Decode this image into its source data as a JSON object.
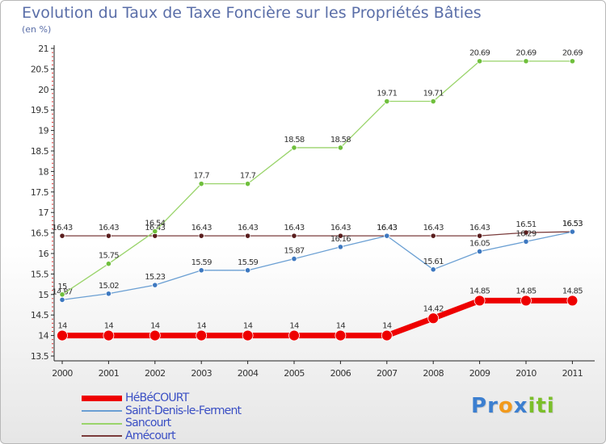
{
  "title": "Evolution du Taux de Taxe Foncière sur les Propriétés Bâties",
  "subtitle": "(en %)",
  "brand": {
    "letters": [
      {
        "ch": "P",
        "color": "#3c7fd0"
      },
      {
        "ch": "r",
        "color": "#3c7fd0"
      },
      {
        "ch": "o",
        "color": "#f29a1c"
      },
      {
        "ch": "x",
        "color": "#3c7fd0"
      },
      {
        "ch": "i",
        "color": "#7bbf2a"
      },
      {
        "ch": "t",
        "color": "#7bbf2a"
      },
      {
        "ch": "i",
        "color": "#7bbf2a"
      }
    ]
  },
  "chart_data": {
    "type": "line",
    "title": "Evolution du Taux de Taxe Foncière sur les Propriétés Bâties",
    "ylabel": "(en %)",
    "xlabel": "",
    "x": [
      "2000",
      "2001",
      "2002",
      "2003",
      "2004",
      "2005",
      "2006",
      "2007",
      "2008",
      "2009",
      "2010",
      "2011"
    ],
    "ylim": [
      13.5,
      21
    ],
    "yticks": [
      "13.5",
      "14",
      "14.5",
      "15",
      "15.5",
      "16",
      "16.5",
      "17",
      "17.5",
      "18",
      "18.5",
      "19",
      "19.5",
      "20",
      "20.5",
      "21"
    ],
    "grid": false,
    "legend_position": "bottom-left",
    "series": [
      {
        "name": "Amécourt",
        "color": "#7a3b3b",
        "marker": "#5a1e1e",
        "width": 1.3,
        "radius": 3.2,
        "values": [
          16.43,
          16.43,
          16.43,
          16.43,
          16.43,
          16.43,
          16.43,
          16.43,
          16.43,
          16.43,
          16.51,
          16.53
        ],
        "labels": [
          "16.43",
          "16.43",
          "16.43",
          "16.43",
          "16.43",
          "16.43",
          "16.43",
          "16.43",
          "16.43",
          "16.43",
          "16.51",
          "16.53"
        ]
      },
      {
        "name": "Saint-Denis-le-Ferment",
        "color": "#6a9fd3",
        "marker": "#3d78c0",
        "width": 1.3,
        "radius": 3.2,
        "values": [
          14.87,
          15.02,
          15.23,
          15.59,
          15.59,
          15.87,
          16.16,
          16.43,
          15.61,
          16.05,
          16.29,
          16.53
        ],
        "labels": [
          "14.87",
          "15.02",
          "15.23",
          "15.59",
          "15.59",
          "15.87",
          "16.16",
          "16.43",
          "15.61",
          "16.05",
          "16.29",
          "16.53"
        ]
      },
      {
        "name": "Sancourt",
        "color": "#9ad46b",
        "marker": "#6fbf3c",
        "width": 1.3,
        "radius": 3.2,
        "values": [
          15.0,
          15.75,
          16.54,
          17.7,
          17.7,
          18.58,
          18.58,
          19.71,
          19.71,
          20.69,
          20.69,
          20.69
        ],
        "labels": [
          "15",
          "15.75",
          "16.54",
          "17.7",
          "17.7",
          "18.58",
          "18.58",
          "19.71",
          "19.71",
          "20.69",
          "20.69",
          "20.69"
        ]
      },
      {
        "name": "HéBéCOURT",
        "color": "#ee0000",
        "marker": "#ee0000",
        "width": 7,
        "radius": 6.5,
        "values": [
          14,
          14,
          14,
          14,
          14,
          14,
          14,
          14,
          14.42,
          14.85,
          14.85,
          14.85
        ],
        "labels": [
          "14",
          "14",
          "14",
          "14",
          "14",
          "14",
          "14",
          "14",
          "14.42",
          "14.85",
          "14.85",
          "14.85"
        ]
      }
    ],
    "legend": [
      {
        "name": "HéBéCOURT",
        "color": "#ee0000",
        "thickness": 7
      },
      {
        "name": "Saint-Denis-le-Ferment",
        "color": "#6a9fd3",
        "thickness": 2
      },
      {
        "name": "Sancourt",
        "color": "#9ad46b",
        "thickness": 2
      },
      {
        "name": "Amécourt",
        "color": "#7a3b3b",
        "thickness": 2
      }
    ]
  }
}
